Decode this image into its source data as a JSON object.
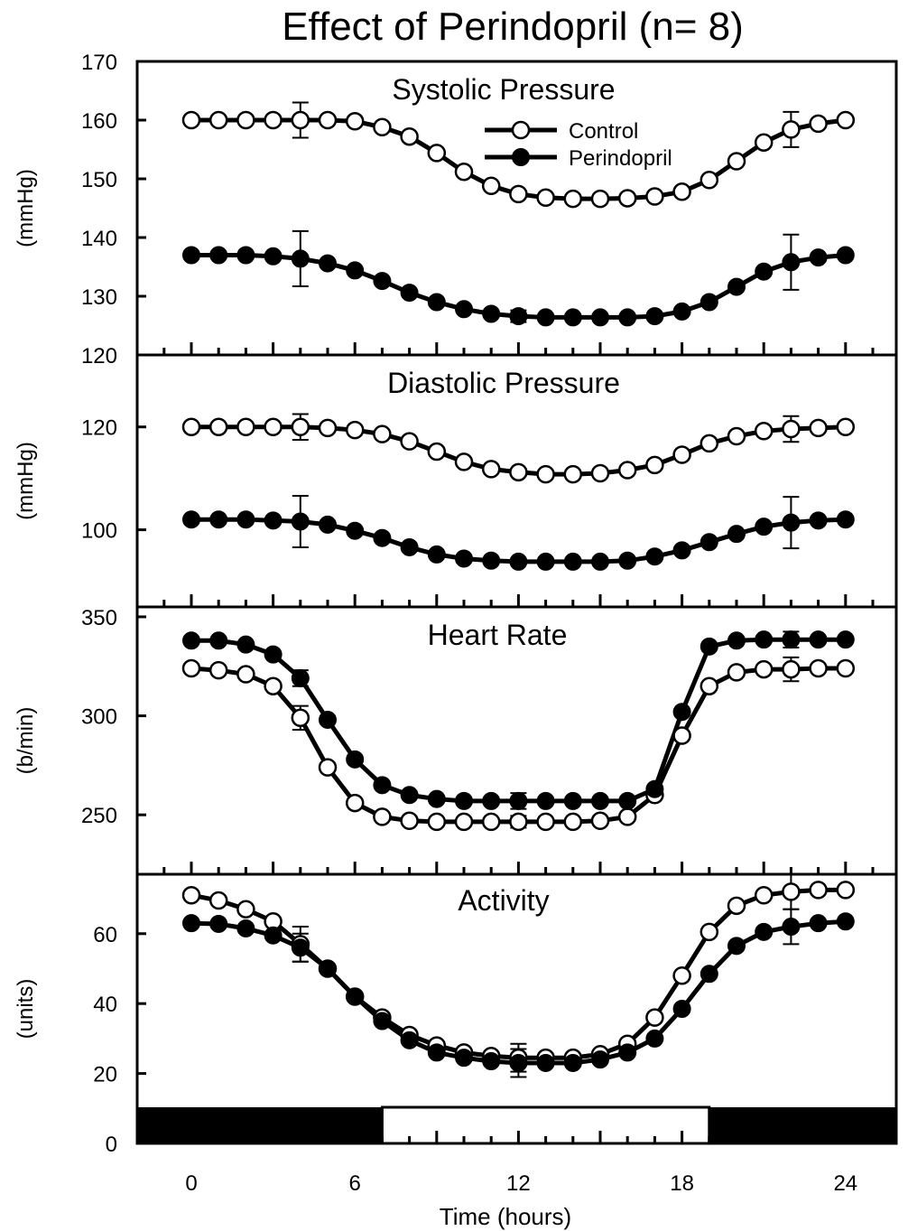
{
  "title": "Effect of Perindopril (n= 8)",
  "xlabel": "Time (hours)",
  "legend": {
    "placement": "top-center in first panel",
    "control": "Control",
    "perindopril": "Perindopril"
  },
  "x_ticks": [
    0,
    6,
    12,
    18,
    24
  ],
  "light_dark_bar": {
    "dark_until": 7,
    "light_from": 7,
    "light_until": 19,
    "dark_from": 19
  },
  "chart_data": [
    {
      "type": "line",
      "title": "Systolic Pressure",
      "ylabel": "(mmHg)",
      "ylim": [
        120,
        170
      ],
      "yticks": [
        120,
        130,
        140,
        150,
        160,
        170
      ],
      "x": [
        0,
        1,
        2,
        3,
        4,
        5,
        6,
        7,
        8,
        9,
        10,
        11,
        12,
        13,
        14,
        15,
        16,
        17,
        18,
        19,
        20,
        21,
        22,
        23,
        24
      ],
      "series": [
        {
          "name": "Control",
          "values": [
            160,
            160,
            160,
            160,
            160,
            160,
            159.8,
            158.8,
            157.2,
            154.4,
            151.2,
            148.8,
            147.4,
            146.8,
            146.6,
            146.6,
            146.7,
            147,
            147.8,
            149.8,
            153,
            156.2,
            158.4,
            159.4,
            160
          ],
          "error_bars": [
            {
              "x": 4,
              "err": 3
            },
            {
              "x": 22,
              "err": 3
            }
          ]
        },
        {
          "name": "Perindopril",
          "values": [
            137,
            137,
            137,
            136.8,
            136.4,
            135.6,
            134.4,
            132.6,
            130.6,
            129,
            127.8,
            127,
            126.6,
            126.4,
            126.4,
            126.4,
            126.4,
            126.6,
            127.4,
            129,
            131.6,
            134.2,
            135.8,
            136.6,
            137
          ],
          "error_bars": [
            {
              "x": 4,
              "err": 4.7
            },
            {
              "x": 12,
              "err": 1
            },
            {
              "x": 22,
              "err": 4.7
            }
          ]
        }
      ]
    },
    {
      "type": "line",
      "title": "Diastolic Pressure",
      "ylabel": "(mmHg)",
      "ylim": [
        85,
        134
      ],
      "yticks": [
        100,
        120
      ],
      "x": [
        0,
        1,
        2,
        3,
        4,
        5,
        6,
        7,
        8,
        9,
        10,
        11,
        12,
        13,
        14,
        15,
        16,
        17,
        18,
        19,
        20,
        21,
        22,
        23,
        24
      ],
      "series": [
        {
          "name": "Control",
          "values": [
            120,
            120,
            120,
            120,
            120,
            119.8,
            119.4,
            118.6,
            117.2,
            115.2,
            113.2,
            111.8,
            111.2,
            110.8,
            110.8,
            111,
            111.6,
            112.6,
            114.6,
            116.8,
            118.2,
            119.2,
            119.6,
            119.8,
            120
          ],
          "error_bars": [
            {
              "x": 4,
              "err": 2.5
            },
            {
              "x": 22,
              "err": 2.5
            }
          ]
        },
        {
          "name": "Perindopril",
          "values": [
            102,
            102,
            102,
            101.8,
            101.6,
            101,
            99.8,
            98.4,
            96.6,
            95.2,
            94.4,
            94,
            93.8,
            93.8,
            93.8,
            93.8,
            94,
            94.8,
            96,
            97.6,
            99.2,
            100.6,
            101.4,
            101.8,
            102
          ],
          "error_bars": [
            {
              "x": 4,
              "err": 5
            },
            {
              "x": 22,
              "err": 5
            }
          ]
        }
      ]
    },
    {
      "type": "line",
      "title": "Heart Rate",
      "ylabel": "(b/min)",
      "ylim": [
        220,
        355
      ],
      "yticks": [
        250,
        300,
        350
      ],
      "x": [
        0,
        1,
        2,
        3,
        4,
        5,
        6,
        7,
        8,
        9,
        10,
        11,
        12,
        13,
        14,
        15,
        16,
        17,
        18,
        19,
        20,
        21,
        22,
        23,
        24
      ],
      "series": [
        {
          "name": "Control",
          "values": [
            324,
            323,
            321,
            315,
            299,
            274,
            256,
            249,
            247,
            246.5,
            246.5,
            246.5,
            246.5,
            246.5,
            246.5,
            247,
            249,
            260,
            290,
            315,
            322,
            323.5,
            323.5,
            324,
            324
          ],
          "error_bars": [
            {
              "x": 4,
              "err": 6
            },
            {
              "x": 12,
              "err": 3
            },
            {
              "x": 22,
              "err": 6
            }
          ]
        },
        {
          "name": "Perindopril",
          "values": [
            338,
            338,
            336,
            331,
            319,
            298,
            278,
            265,
            260,
            258,
            257,
            257,
            257,
            257,
            257,
            257,
            257,
            263,
            302,
            335,
            338,
            338.5,
            338.5,
            338.5,
            338.5
          ],
          "error_bars": [
            {
              "x": 4,
              "err": 4
            },
            {
              "x": 12,
              "err": 4
            },
            {
              "x": 22,
              "err": 4
            }
          ]
        }
      ]
    },
    {
      "type": "line",
      "title": "Activity",
      "ylabel": "(units)",
      "ylim": [
        0,
        77
      ],
      "yticks": [
        0,
        20,
        40,
        60
      ],
      "x": [
        0,
        1,
        2,
        3,
        4,
        5,
        6,
        7,
        8,
        9,
        10,
        11,
        12,
        13,
        14,
        15,
        16,
        17,
        18,
        19,
        20,
        21,
        22,
        23,
        24
      ],
      "series": [
        {
          "name": "Control",
          "values": [
            71,
            69.5,
            67,
            63.5,
            57,
            50,
            42,
            36,
            31,
            28,
            26,
            25,
            24.5,
            24.5,
            24.5,
            25.5,
            28.5,
            36,
            48,
            60.5,
            68,
            71,
            72,
            72.5,
            72.5
          ],
          "error_bars": [
            {
              "x": 4,
              "err": 5
            },
            {
              "x": 12,
              "err": 4
            },
            {
              "x": 22,
              "err": 5
            }
          ]
        },
        {
          "name": "Perindopril",
          "values": [
            63,
            62.8,
            61.5,
            59.5,
            56,
            50,
            42,
            35,
            29.5,
            26,
            24.5,
            23.5,
            23,
            23,
            23,
            24,
            26,
            30,
            38.5,
            48.5,
            56.5,
            60.5,
            62,
            63,
            63.5
          ],
          "error_bars": [
            {
              "x": 4,
              "err": 4
            },
            {
              "x": 12,
              "err": 4
            },
            {
              "x": 22,
              "err": 5
            }
          ]
        }
      ]
    }
  ]
}
